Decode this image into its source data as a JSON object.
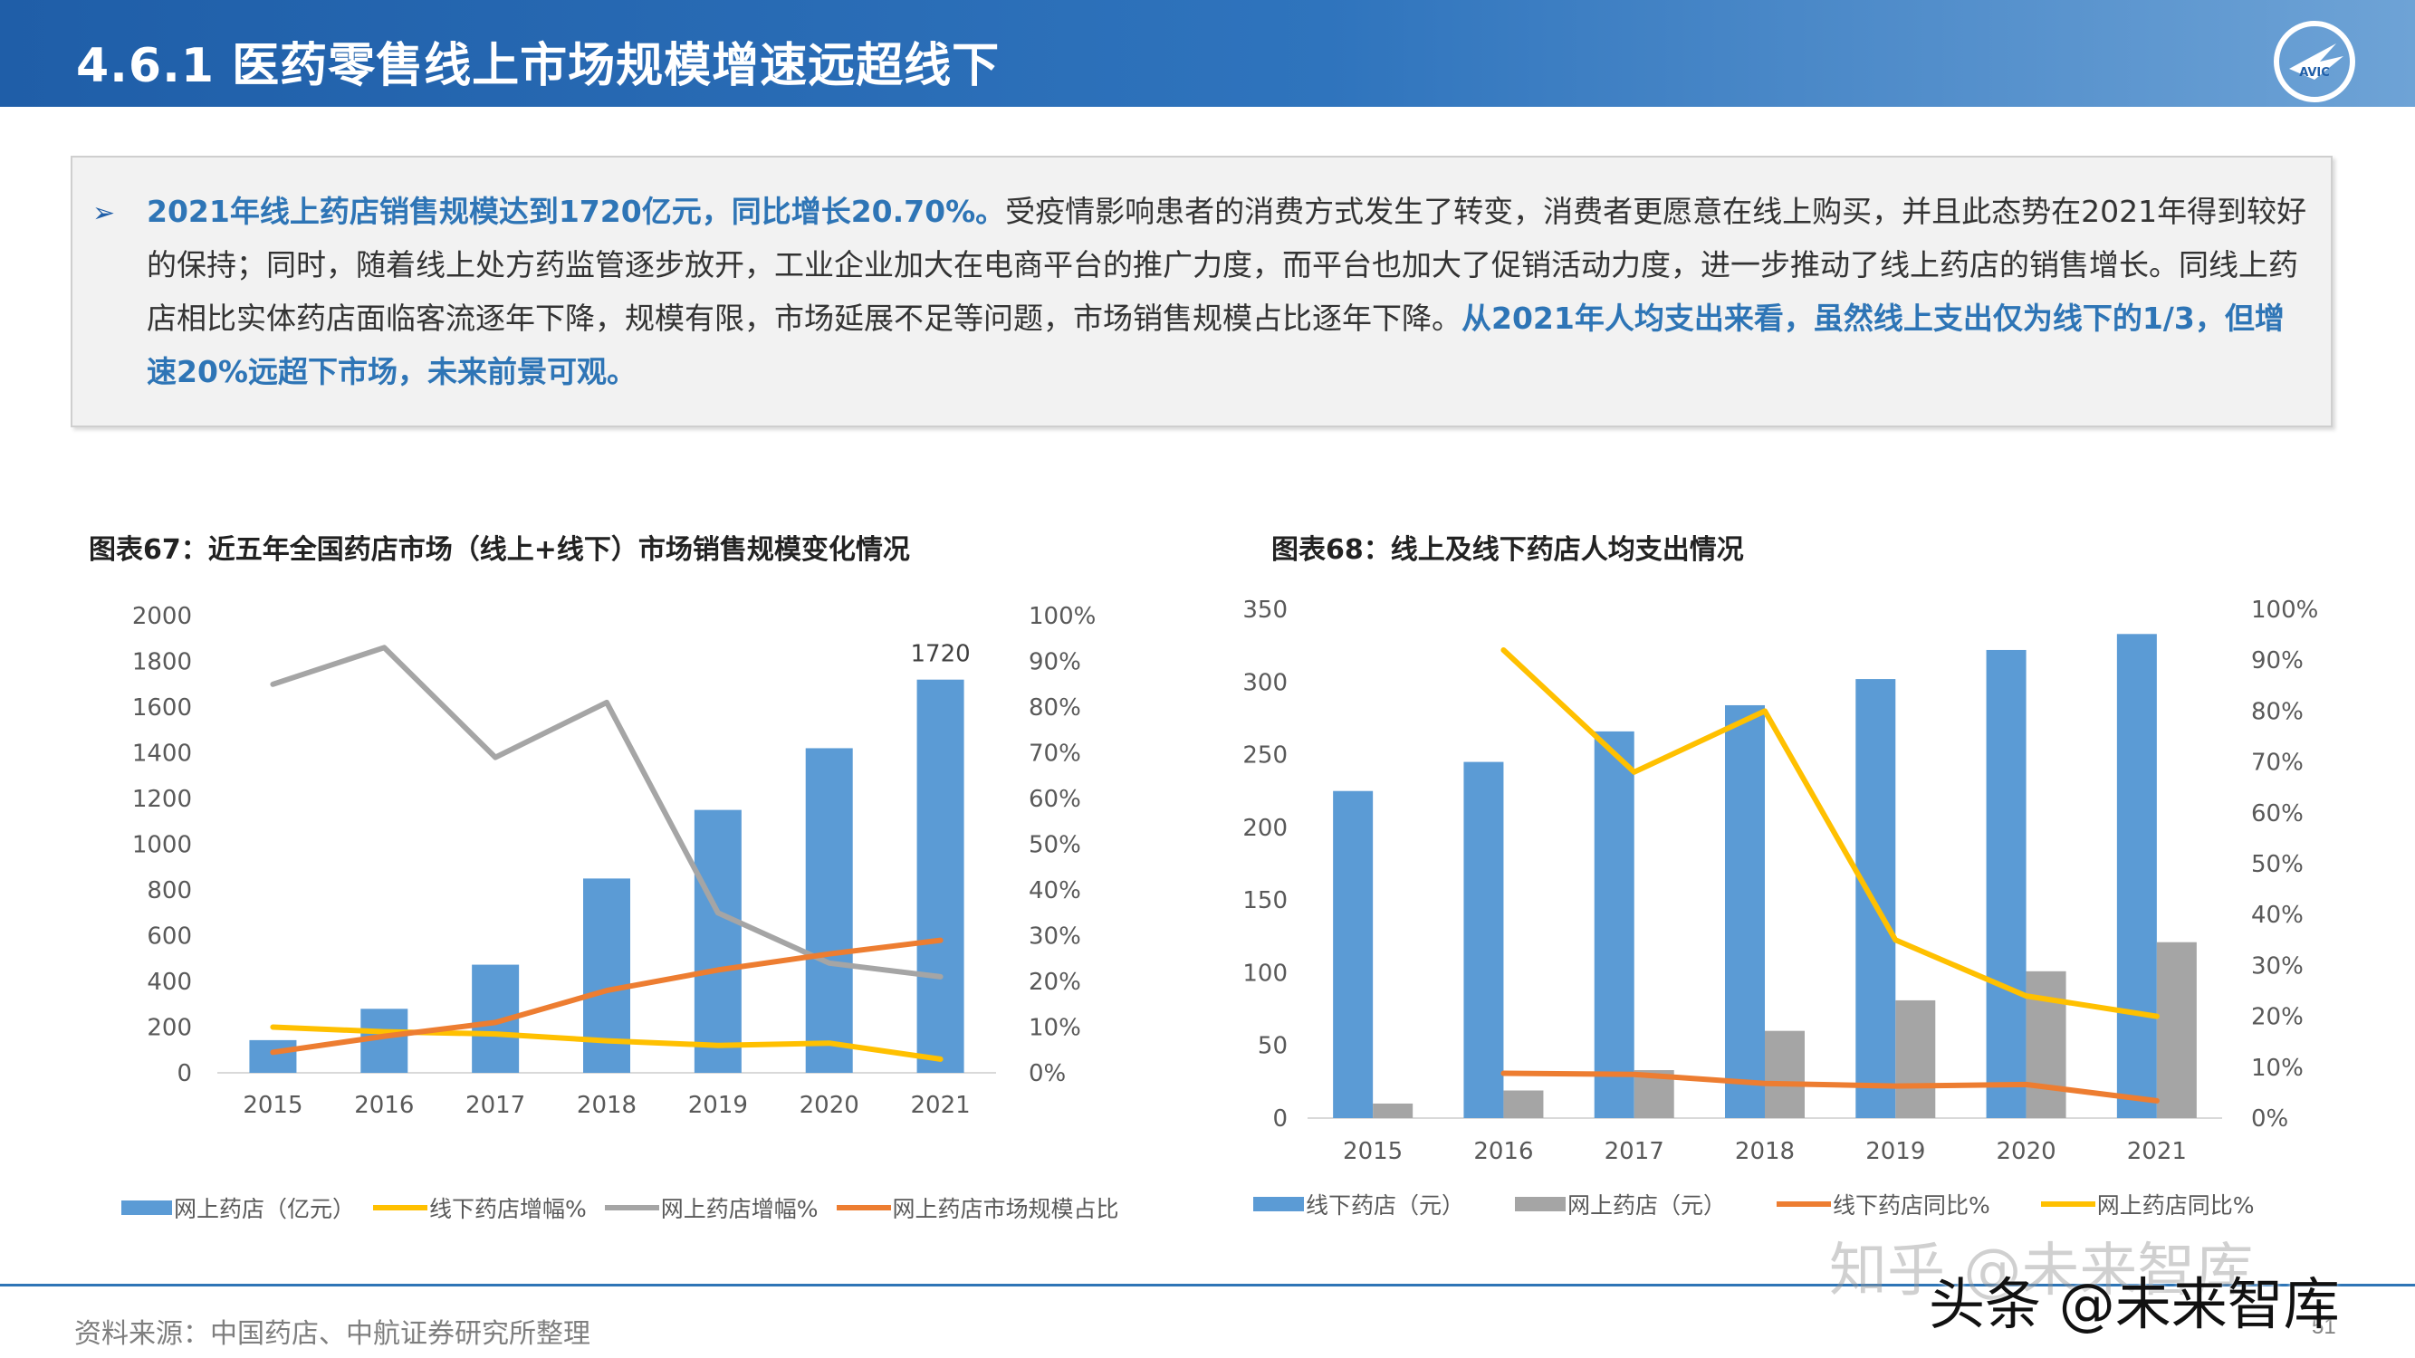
{
  "header": {
    "title": "4.6.1  医药零售线上市场规模增速远超线下",
    "logo_text": "AVIC"
  },
  "summary": {
    "highlight_1": "2021年线上药店销售规模达到1720亿元，同比增长20.70%。",
    "text_1": "受疫情影响患者的消费方式发生了转变，消费者更愿意在线上购买，并且此态势在2021年得到较好的保持；同时，随着线上处方药监管逐步放开，工业企业加大在电商平台的推广力度，而平台也加大了促销活动力度，进一步推动了线上药店的销售增长。同线上药店相比实体药店面临客流逐年下降，规模有限，市场延展不足等问题，市场销售规模占比逐年下降。",
    "highlight_2": "从2021年人均支出来看，虽然线上支出仅为线下的1/3，但增速20%远超下市场，未来前景可观。"
  },
  "chart_data": [
    {
      "type": "bar",
      "title": "图表67：近五年全国药店市场（线上+线下）市场销售规模变化情况",
      "categories": [
        "2015",
        "2016",
        "2017",
        "2018",
        "2019",
        "2020",
        "2021"
      ],
      "ylim": [
        0,
        2000
      ],
      "y_ticks": [
        "0",
        "200",
        "400",
        "600",
        "800",
        "1000",
        "1200",
        "1400",
        "1600",
        "1800",
        "2000"
      ],
      "y2lim": [
        0,
        1.0
      ],
      "y2_ticks": [
        "0%",
        "10%",
        "20%",
        "30%",
        "40%",
        "50%",
        "60%",
        "70%",
        "80%",
        "90%",
        "100%"
      ],
      "bar_series": [
        {
          "name": "网上药店（亿元）",
          "color": "#5b9bd5",
          "values": [
            143,
            280,
            473,
            850,
            1150,
            1420,
            1720
          ]
        }
      ],
      "line_series": [
        {
          "name": "线下药店增幅%",
          "color": "#ffc000",
          "values": [
            0.1,
            0.09,
            0.085,
            0.07,
            0.06,
            0.065,
            0.03
          ]
        },
        {
          "name": "网上药店增幅%",
          "color": "#a5a5a5",
          "values": [
            0.85,
            0.93,
            0.69,
            0.81,
            0.35,
            0.24,
            0.21
          ]
        },
        {
          "name": "网上药店市场规模占比",
          "color": "#ed7d31",
          "values": [
            0.045,
            0.08,
            0.11,
            0.18,
            0.225,
            0.26,
            0.29
          ]
        }
      ],
      "data_labels": [
        {
          "index": 6,
          "text": "1720"
        }
      ],
      "legend_position": "bottom",
      "grid": false
    },
    {
      "type": "bar",
      "title": "图表68：线上及线下药店人均支出情况",
      "categories": [
        "2015",
        "2016",
        "2017",
        "2018",
        "2019",
        "2020",
        "2021"
      ],
      "ylim": [
        0,
        350
      ],
      "y_ticks": [
        "0",
        "50",
        "100",
        "150",
        "200",
        "250",
        "300",
        "350"
      ],
      "y2lim": [
        0,
        1.0
      ],
      "y2_ticks": [
        "0%",
        "10%",
        "20%",
        "30%",
        "40%",
        "50%",
        "60%",
        "70%",
        "80%",
        "90%",
        "100%"
      ],
      "bar_series": [
        {
          "name": "线下药店（元）",
          "color": "#5b9bd5",
          "values": [
            225,
            245,
            266,
            284,
            302,
            322,
            333
          ]
        },
        {
          "name": "网上药店（元）",
          "color": "#a5a5a5",
          "values": [
            10,
            19,
            33,
            60,
            81,
            101,
            121
          ]
        }
      ],
      "line_series": [
        {
          "name": "线下药店同比%",
          "color": "#ed7d31",
          "values": [
            null,
            0.088,
            0.086,
            0.068,
            0.063,
            0.066,
            0.034
          ]
        },
        {
          "name": "网上药店同比%",
          "color": "#ffc000",
          "values": [
            null,
            0.92,
            0.68,
            0.8,
            0.35,
            0.24,
            0.2
          ]
        }
      ],
      "legend_position": "bottom",
      "grid": false
    }
  ],
  "footer": {
    "source": "资料来源：中国药店、中航证券研究所整理",
    "page": "51"
  },
  "watermark": {
    "line1": "知乎 @未来智库",
    "line2": "头条 @未来智库"
  }
}
